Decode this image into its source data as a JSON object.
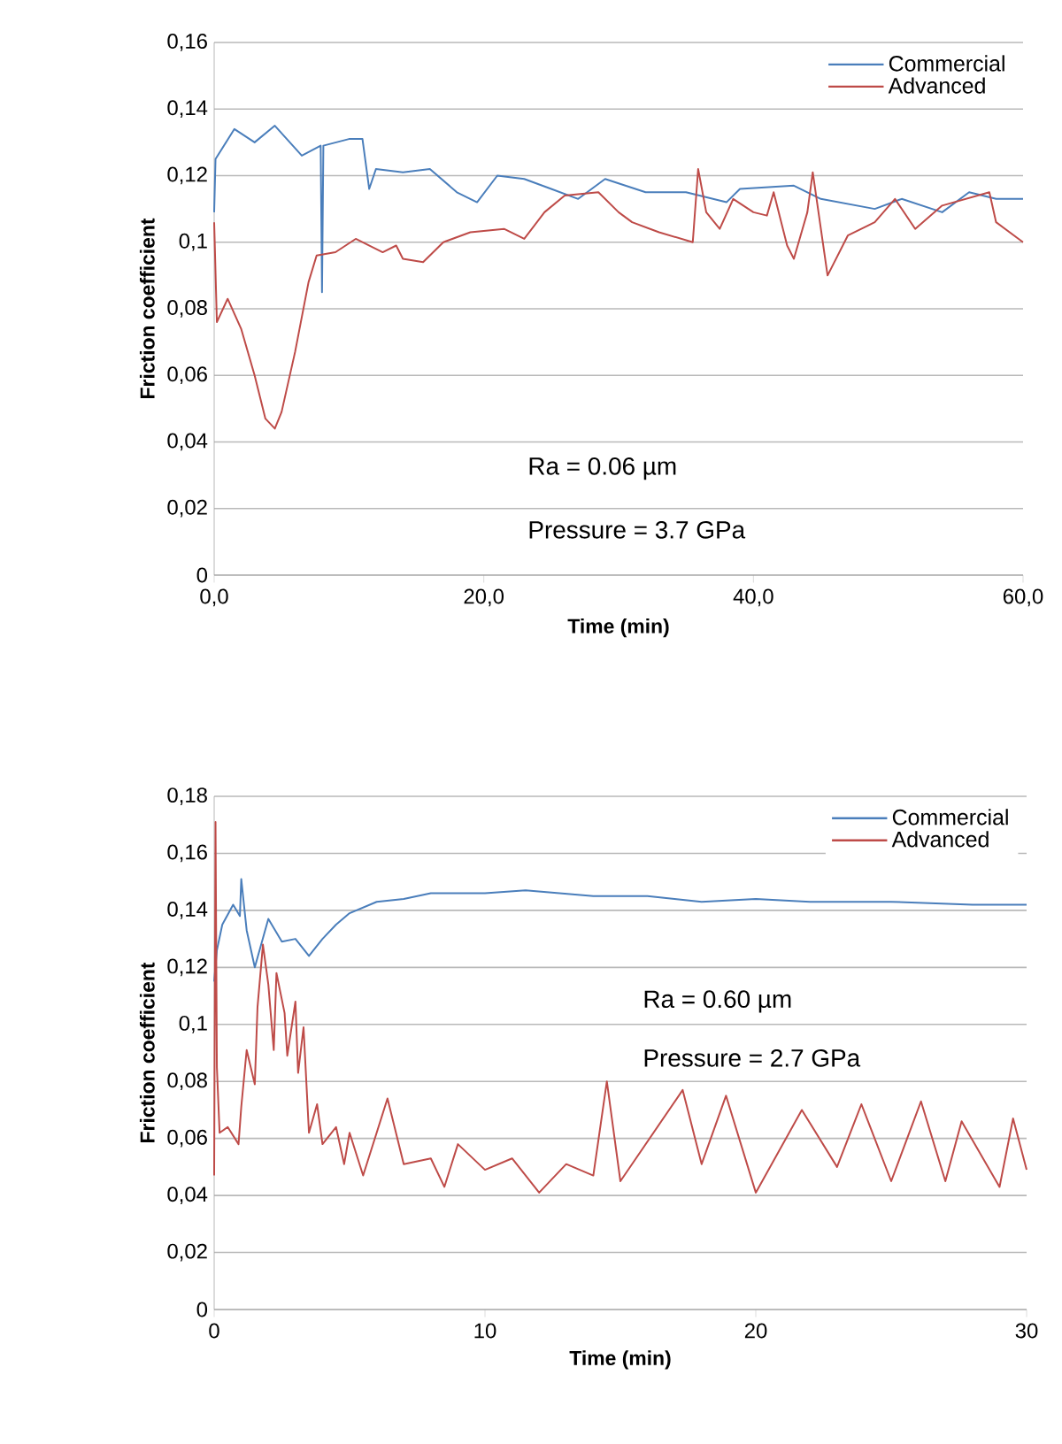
{
  "chart_data": [
    {
      "type": "line",
      "xlabel": "Time (min)",
      "ylabel": "Friction coefficient",
      "xlim": [
        0,
        60
      ],
      "xticks": [
        {
          "value": 0,
          "label": "0,0"
        },
        {
          "value": 20,
          "label": "20,0"
        },
        {
          "value": 40,
          "label": "40,0"
        },
        {
          "value": 60,
          "label": "60,0"
        }
      ],
      "ylim": [
        0,
        0.16
      ],
      "yticks": [
        0,
        {
          "value": 0.02,
          "label": "0,02"
        },
        {
          "value": 0.04,
          "label": "0,04"
        },
        {
          "value": 0.06,
          "label": "0,06"
        },
        {
          "value": 0.08,
          "label": "0,08"
        },
        {
          "value": 0.1,
          "label": "0,1"
        },
        {
          "value": 0.12,
          "label": "0,12"
        },
        {
          "value": 0.14,
          "label": "0,14"
        },
        {
          "value": 0.16,
          "label": "0,16"
        }
      ],
      "grid": "y",
      "legend": "top right",
      "annotations": [
        "Ra = 0.06 µm",
        "Pressure = 3.7 GPa"
      ],
      "series": [
        {
          "name": "Commercial",
          "color": "#4a7ebb",
          "x": [
            0,
            0.1,
            1.5,
            3,
            4.5,
            6.5,
            7.9,
            8,
            8.1,
            10,
            11,
            11.5,
            12,
            14,
            16,
            18,
            19.5,
            21,
            23,
            25,
            27,
            29,
            32,
            35,
            38,
            39,
            43,
            45,
            49,
            51,
            54,
            56,
            58,
            60
          ],
          "values": [
            0.109,
            0.125,
            0.134,
            0.13,
            0.135,
            0.126,
            0.129,
            0.085,
            0.129,
            0.131,
            0.131,
            0.116,
            0.122,
            0.121,
            0.122,
            0.115,
            0.112,
            0.12,
            0.119,
            0.116,
            0.113,
            0.119,
            0.115,
            0.115,
            0.112,
            0.116,
            0.117,
            0.113,
            0.11,
            0.113,
            0.109,
            0.115,
            0.113,
            0.113
          ]
        },
        {
          "name": "Advanced",
          "color": "#be4b48",
          "x": [
            0,
            0.2,
            1,
            2,
            3,
            3.8,
            4.5,
            5,
            6,
            7,
            7.6,
            9,
            10.5,
            12.5,
            13.5,
            14,
            15.5,
            17,
            19,
            21.5,
            23,
            24.5,
            26,
            28.5,
            30,
            31,
            33,
            35.5,
            35.9,
            36.5,
            37.5,
            38.5,
            40,
            41,
            41.5,
            42.5,
            43,
            44,
            44.4,
            45.5,
            47,
            49,
            50.5,
            52,
            54,
            57.5,
            58,
            60
          ],
          "values": [
            0.106,
            0.076,
            0.083,
            0.074,
            0.06,
            0.047,
            0.044,
            0.049,
            0.067,
            0.088,
            0.096,
            0.097,
            0.101,
            0.097,
            0.099,
            0.095,
            0.094,
            0.1,
            0.103,
            0.104,
            0.101,
            0.109,
            0.114,
            0.115,
            0.109,
            0.106,
            0.103,
            0.1,
            0.122,
            0.109,
            0.104,
            0.113,
            0.109,
            0.108,
            0.115,
            0.099,
            0.095,
            0.109,
            0.121,
            0.09,
            0.102,
            0.106,
            0.113,
            0.104,
            0.111,
            0.115,
            0.106,
            0.1
          ]
        }
      ]
    },
    {
      "type": "line",
      "xlabel": "Time (min)",
      "ylabel": "Friction coefficient",
      "xlim": [
        0,
        30
      ],
      "xticks": [
        0,
        10,
        20,
        30
      ],
      "ylim": [
        0,
        0.18
      ],
      "yticks": [
        0,
        {
          "value": 0.02,
          "label": "0,02"
        },
        {
          "value": 0.04,
          "label": "0,04"
        },
        {
          "value": 0.06,
          "label": "0,06"
        },
        {
          "value": 0.08,
          "label": "0,08"
        },
        {
          "value": 0.1,
          "label": "0,1"
        },
        {
          "value": 0.12,
          "label": "0,12"
        },
        {
          "value": 0.14,
          "label": "0,14"
        },
        {
          "value": 0.16,
          "label": "0,16"
        },
        {
          "value": 0.18,
          "label": "0,18"
        }
      ],
      "grid": "y",
      "legend": "top right",
      "annotations": [
        "Ra = 0.60 µm",
        "Pressure = 2.7 GPa"
      ],
      "series": [
        {
          "name": "Commercial",
          "color": "#4a7ebb",
          "x": [
            0,
            0.1,
            0.3,
            0.7,
            0.95,
            1,
            1.2,
            1.5,
            2,
            2.5,
            3,
            3.5,
            4,
            4.5,
            5,
            6,
            7,
            8,
            10,
            11.5,
            14,
            16,
            17,
            18,
            20,
            22,
            25,
            28,
            30
          ],
          "values": [
            0.115,
            0.126,
            0.135,
            0.142,
            0.138,
            0.151,
            0.133,
            0.12,
            0.137,
            0.129,
            0.13,
            0.124,
            0.13,
            0.135,
            0.139,
            0.143,
            0.144,
            0.146,
            0.146,
            0.147,
            0.145,
            0.145,
            0.144,
            0.143,
            0.144,
            0.143,
            0.143,
            0.142,
            0.142
          ]
        },
        {
          "name": "Advanced",
          "color": "#be4b48",
          "x": [
            0,
            0.05,
            0.1,
            0.2,
            0.5,
            0.9,
            1,
            1.2,
            1.5,
            1.6,
            1.8,
            2,
            2.2,
            2.3,
            2.6,
            2.7,
            3,
            3.1,
            3.3,
            3.5,
            3.8,
            4,
            4.5,
            4.8,
            5,
            5.5,
            6,
            6.4,
            7,
            8,
            8.5,
            9,
            10,
            11,
            12,
            13,
            14,
            14.5,
            15,
            17.3,
            18,
            18.9,
            20,
            21.7,
            23,
            23.9,
            25,
            26.1,
            27,
            27.6,
            29,
            29.5,
            30
          ],
          "values": [
            0.047,
            0.171,
            0.085,
            0.062,
            0.064,
            0.058,
            0.071,
            0.091,
            0.079,
            0.106,
            0.128,
            0.114,
            0.091,
            0.118,
            0.104,
            0.089,
            0.108,
            0.083,
            0.099,
            0.062,
            0.072,
            0.058,
            0.064,
            0.051,
            0.062,
            0.047,
            0.062,
            0.074,
            0.051,
            0.053,
            0.043,
            0.058,
            0.049,
            0.053,
            0.041,
            0.051,
            0.047,
            0.08,
            0.045,
            0.077,
            0.051,
            0.075,
            0.041,
            0.07,
            0.05,
            0.072,
            0.045,
            0.073,
            0.045,
            0.066,
            0.043,
            0.067,
            0.049
          ]
        }
      ]
    }
  ]
}
